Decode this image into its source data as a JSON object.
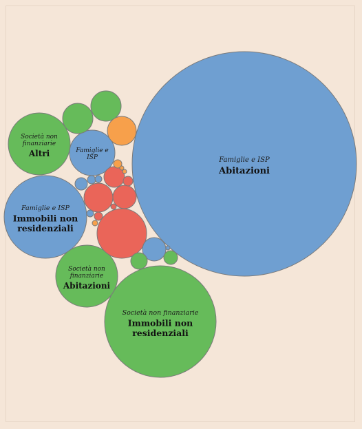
{
  "chart_data": {
    "type": "bubble",
    "title": "",
    "colors": {
      "Famiglie e ISP": "#6f9fd1",
      "Società non finanziarie": "#66bb5a",
      "red": "#ea6559",
      "orange": "#f7a04b"
    },
    "labeled_bubbles": [
      {
        "group": "Famiglie e ISP",
        "category": "Abitazioni"
      },
      {
        "group": "Società non finanziarie",
        "category": "Immobili non residenziali"
      },
      {
        "group": "Famiglie e ISP",
        "category": "Immobili non residenziali"
      },
      {
        "group": "Società non finanziarie",
        "category": "Abitazioni"
      },
      {
        "group": "Società non finanziarie",
        "category": "Altri"
      },
      {
        "group": "Famiglie e ISP",
        "category": ""
      }
    ]
  }
}
